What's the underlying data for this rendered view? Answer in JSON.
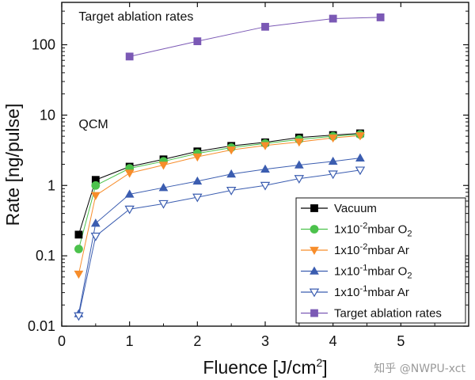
{
  "chart_data": {
    "type": "line",
    "xlabel": "Fluence [J/cm",
    "xlabel_sup": "2",
    "xlabel_end": "]",
    "ylabel": "Rate [ng/pulse]",
    "xlim": [
      0,
      6
    ],
    "ylim": [
      0.01,
      400
    ],
    "yscale": "log",
    "x_ticks": [
      0,
      1,
      2,
      3,
      4,
      5
    ],
    "x_tick_labels": [
      "0",
      "1",
      "2",
      "3",
      "4",
      "5"
    ],
    "y_ticks": [
      0.01,
      0.1,
      1,
      10,
      100
    ],
    "y_tick_labels": [
      "0.01",
      "0.1",
      "1",
      "10",
      "100"
    ],
    "legend_placement": "bottom-right",
    "annotations": [
      {
        "text": "Target ablation rates",
        "x": 0.25,
        "y": 220
      },
      {
        "text": "QCM",
        "x": 0.25,
        "y": 6.5
      }
    ],
    "series": [
      {
        "name": "Vacuum",
        "label_parts": [
          "Vacuum"
        ],
        "color": "#000000",
        "marker": "square",
        "filled": true,
        "x": [
          0.25,
          0.5,
          1,
          1.5,
          2,
          2.5,
          3,
          3.5,
          4,
          4.4
        ],
        "y": [
          0.2,
          1.2,
          1.85,
          2.35,
          3.05,
          3.65,
          4.1,
          4.8,
          5.2,
          5.5
        ]
      },
      {
        "name": "1x10-2mbar O2",
        "label_parts": [
          "1x10",
          "-2",
          "mbar O",
          "2"
        ],
        "color": "#4cc24c",
        "marker": "circle",
        "filled": true,
        "x": [
          0.25,
          0.5,
          1,
          1.5,
          2,
          2.5,
          3,
          3.5,
          4,
          4.4
        ],
        "y": [
          0.125,
          1.0,
          1.75,
          2.2,
          2.85,
          3.45,
          3.95,
          4.5,
          5.0,
          5.3
        ]
      },
      {
        "name": "1x10-2mbar Ar",
        "label_parts": [
          "1x10",
          "-2",
          "mbar Ar",
          ""
        ],
        "color": "#f78d2b",
        "marker": "triangle-down",
        "filled": true,
        "x": [
          0.25,
          0.5,
          1,
          1.5,
          2,
          2.5,
          3,
          3.5,
          4,
          4.4
        ],
        "y": [
          0.055,
          0.72,
          1.5,
          1.95,
          2.55,
          3.2,
          3.7,
          4.15,
          4.75,
          5.1
        ]
      },
      {
        "name": "1x10-1mbar O2",
        "label_parts": [
          "1x10",
          "-1",
          "mbar O",
          "2"
        ],
        "color": "#3b5db0",
        "marker": "triangle-up",
        "filled": true,
        "x": [
          0.25,
          0.5,
          1,
          1.5,
          2,
          2.5,
          3,
          3.5,
          4,
          4.4
        ],
        "y": [
          0.015,
          0.29,
          0.75,
          0.93,
          1.15,
          1.45,
          1.7,
          1.95,
          2.2,
          2.45
        ]
      },
      {
        "name": "1x10-1mbar Ar",
        "label_parts": [
          "1x10",
          "-1",
          "mbar Ar",
          ""
        ],
        "color": "#3b5db0",
        "marker": "triangle-down",
        "filled": false,
        "x": [
          0.25,
          0.5,
          1,
          1.5,
          2,
          2.5,
          3,
          3.5,
          4,
          4.4
        ],
        "y": [
          0.014,
          0.19,
          0.46,
          0.55,
          0.68,
          0.85,
          1.0,
          1.25,
          1.45,
          1.65
        ]
      },
      {
        "name": "Target ablation rates",
        "label_parts": [
          "Target ablation rates"
        ],
        "color": "#7b59b5",
        "marker": "square",
        "filled": true,
        "x": [
          1,
          2,
          3,
          4,
          4.7
        ],
        "y": [
          68,
          112,
          180,
          235,
          245
        ]
      }
    ]
  },
  "watermark": "知乎 @NWPU-xct"
}
